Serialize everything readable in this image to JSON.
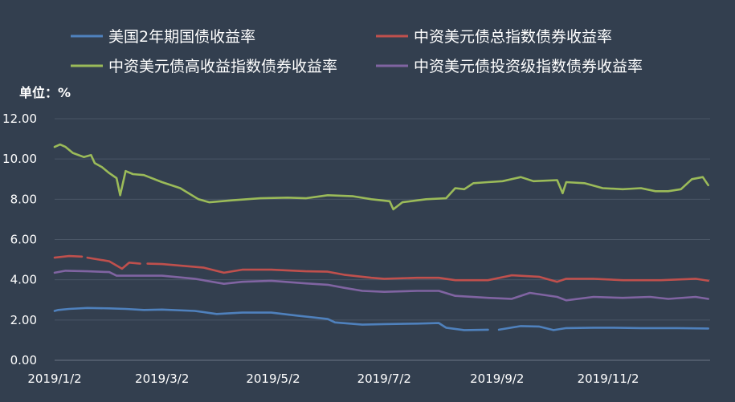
{
  "chart_data": {
    "type": "line",
    "unit_label": "单位：%",
    "x_tick_labels": [
      "2019/1/2",
      "2019/3/2",
      "2019/5/2",
      "2019/7/2",
      "2019/9/2",
      "2019/11/2"
    ],
    "y_tick_labels": [
      "0.00",
      "2.00",
      "4.00",
      "6.00",
      "8.00",
      "10.00",
      "12.00"
    ],
    "ylim": [
      0,
      12
    ],
    "grid": true,
    "legend_position": "top",
    "series": [
      {
        "name": "美国2年期国债收益率",
        "color": "#4f81bd",
        "points": [
          [
            "2019-01-02",
            2.45
          ],
          [
            "2019-01-04",
            2.5
          ],
          [
            "2019-01-10",
            2.55
          ],
          [
            "2019-01-20",
            2.6
          ],
          [
            "2019-02-01",
            2.58
          ],
          [
            "2019-02-10",
            2.55
          ],
          [
            "2019-02-20",
            2.5
          ],
          [
            "2019-03-02",
            2.52
          ],
          [
            "2019-03-20",
            2.45
          ],
          [
            "2019-04-01",
            2.3
          ],
          [
            "2019-04-15",
            2.37
          ],
          [
            "2019-05-01",
            2.37
          ],
          [
            "2019-05-15",
            2.22
          ],
          [
            "2019-06-01",
            2.05
          ],
          [
            "2019-06-05",
            1.88
          ],
          [
            "2019-06-20",
            1.77
          ],
          [
            "2019-07-02",
            1.8
          ],
          [
            "2019-07-20",
            1.82
          ],
          [
            "2019-08-01",
            1.85
          ],
          [
            "2019-08-05",
            1.62
          ],
          [
            "2019-08-15",
            1.5
          ],
          [
            "2019-08-28",
            1.52
          ],
          null,
          [
            "2019-09-03",
            1.52
          ],
          [
            "2019-09-15",
            1.7
          ],
          [
            "2019-09-25",
            1.68
          ],
          [
            "2019-10-03",
            1.5
          ],
          [
            "2019-10-10",
            1.6
          ],
          [
            "2019-10-25",
            1.62
          ],
          [
            "2019-11-05",
            1.62
          ],
          [
            "2019-11-20",
            1.6
          ],
          [
            "2019-12-10",
            1.6
          ],
          [
            "2019-12-27",
            1.58
          ]
        ]
      },
      {
        "name": "中资美元债总指数债券收益率",
        "color": "#c0504d",
        "points": [
          [
            "2019-01-02",
            5.1
          ],
          [
            "2019-01-10",
            5.18
          ],
          [
            "2019-01-17",
            5.15
          ],
          null,
          [
            "2019-01-20",
            5.1
          ],
          [
            "2019-02-01",
            4.92
          ],
          [
            "2019-02-08",
            4.55
          ],
          [
            "2019-02-12",
            4.85
          ],
          [
            "2019-02-18",
            4.8
          ],
          null,
          [
            "2019-02-22",
            4.8
          ],
          [
            "2019-03-02",
            4.78
          ],
          [
            "2019-03-25",
            4.6
          ],
          [
            "2019-04-05",
            4.35
          ],
          [
            "2019-04-15",
            4.5
          ],
          [
            "2019-05-01",
            4.5
          ],
          [
            "2019-05-20",
            4.42
          ],
          [
            "2019-06-01",
            4.4
          ],
          [
            "2019-06-10",
            4.25
          ],
          [
            "2019-06-25",
            4.1
          ],
          [
            "2019-07-02",
            4.05
          ],
          [
            "2019-07-20",
            4.1
          ],
          [
            "2019-08-01",
            4.1
          ],
          [
            "2019-08-10",
            3.98
          ],
          [
            "2019-08-28",
            3.98
          ],
          [
            "2019-09-10",
            4.22
          ],
          [
            "2019-09-25",
            4.15
          ],
          [
            "2019-10-05",
            3.9
          ],
          [
            "2019-10-10",
            4.05
          ],
          [
            "2019-10-25",
            4.05
          ],
          [
            "2019-11-10",
            3.98
          ],
          [
            "2019-12-01",
            3.98
          ],
          [
            "2019-12-20",
            4.05
          ],
          [
            "2019-12-27",
            3.95
          ]
        ]
      },
      {
        "name": "中资美元债高收益指数债券收益率",
        "color": "#9bbb59",
        "points": [
          [
            "2019-01-02",
            10.6
          ],
          [
            "2019-01-05",
            10.72
          ],
          [
            "2019-01-08",
            10.6
          ],
          [
            "2019-01-12",
            10.3
          ],
          [
            "2019-01-18",
            10.1
          ],
          [
            "2019-01-22",
            10.2
          ],
          [
            "2019-01-24",
            9.8
          ],
          [
            "2019-01-28",
            9.6
          ],
          [
            "2019-02-01",
            9.3
          ],
          [
            "2019-02-05",
            9.05
          ],
          [
            "2019-02-07",
            8.2
          ],
          [
            "2019-02-10",
            9.4
          ],
          [
            "2019-02-14",
            9.25
          ],
          [
            "2019-02-20",
            9.2
          ],
          [
            "2019-03-02",
            8.85
          ],
          [
            "2019-03-12",
            8.55
          ],
          [
            "2019-03-22",
            8.0
          ],
          [
            "2019-03-28",
            7.85
          ],
          [
            "2019-04-10",
            7.95
          ],
          [
            "2019-04-25",
            8.05
          ],
          [
            "2019-05-10",
            8.08
          ],
          [
            "2019-05-20",
            8.05
          ],
          [
            "2019-06-01",
            8.2
          ],
          [
            "2019-06-15",
            8.15
          ],
          [
            "2019-06-25",
            8.0
          ],
          [
            "2019-07-05",
            7.9
          ],
          [
            "2019-07-07",
            7.5
          ],
          [
            "2019-07-12",
            7.85
          ],
          [
            "2019-07-25",
            8.0
          ],
          [
            "2019-08-05",
            8.05
          ],
          [
            "2019-08-10",
            8.55
          ],
          [
            "2019-08-15",
            8.5
          ],
          [
            "2019-08-20",
            8.8
          ],
          [
            "2019-08-28",
            8.85
          ],
          [
            "2019-09-05",
            8.9
          ],
          [
            "2019-09-15",
            9.1
          ],
          [
            "2019-09-22",
            8.9
          ],
          [
            "2019-10-05",
            8.95
          ],
          [
            "2019-10-08",
            8.3
          ],
          [
            "2019-10-10",
            8.85
          ],
          [
            "2019-10-20",
            8.8
          ],
          [
            "2019-10-30",
            8.55
          ],
          [
            "2019-11-10",
            8.5
          ],
          [
            "2019-11-20",
            8.55
          ],
          [
            "2019-11-28",
            8.4
          ],
          [
            "2019-12-05",
            8.4
          ],
          [
            "2019-12-12",
            8.5
          ],
          [
            "2019-12-18",
            9.0
          ],
          [
            "2019-12-24",
            9.1
          ],
          [
            "2019-12-27",
            8.7
          ]
        ]
      },
      {
        "name": "中资美元债投资级指数债券收益率",
        "color": "#8064a2",
        "points": [
          [
            "2019-01-02",
            4.35
          ],
          [
            "2019-01-08",
            4.45
          ],
          [
            "2019-01-20",
            4.42
          ],
          [
            "2019-02-01",
            4.38
          ],
          [
            "2019-02-05",
            4.2
          ],
          [
            "2019-02-12",
            4.2
          ],
          [
            "2019-03-02",
            4.2
          ],
          [
            "2019-03-20",
            4.05
          ],
          [
            "2019-04-05",
            3.8
          ],
          [
            "2019-04-15",
            3.9
          ],
          [
            "2019-05-01",
            3.95
          ],
          [
            "2019-05-20",
            3.82
          ],
          [
            "2019-06-01",
            3.75
          ],
          [
            "2019-06-10",
            3.6
          ],
          [
            "2019-06-20",
            3.45
          ],
          [
            "2019-07-02",
            3.4
          ],
          [
            "2019-07-20",
            3.45
          ],
          [
            "2019-08-01",
            3.45
          ],
          [
            "2019-08-10",
            3.2
          ],
          [
            "2019-08-28",
            3.1
          ],
          [
            "2019-09-10",
            3.05
          ],
          [
            "2019-09-20",
            3.35
          ],
          [
            "2019-10-05",
            3.15
          ],
          [
            "2019-10-10",
            2.98
          ],
          [
            "2019-10-25",
            3.15
          ],
          [
            "2019-11-10",
            3.1
          ],
          [
            "2019-11-25",
            3.15
          ],
          [
            "2019-12-05",
            3.05
          ],
          [
            "2019-12-20",
            3.15
          ],
          [
            "2019-12-27",
            3.05
          ]
        ]
      }
    ]
  }
}
